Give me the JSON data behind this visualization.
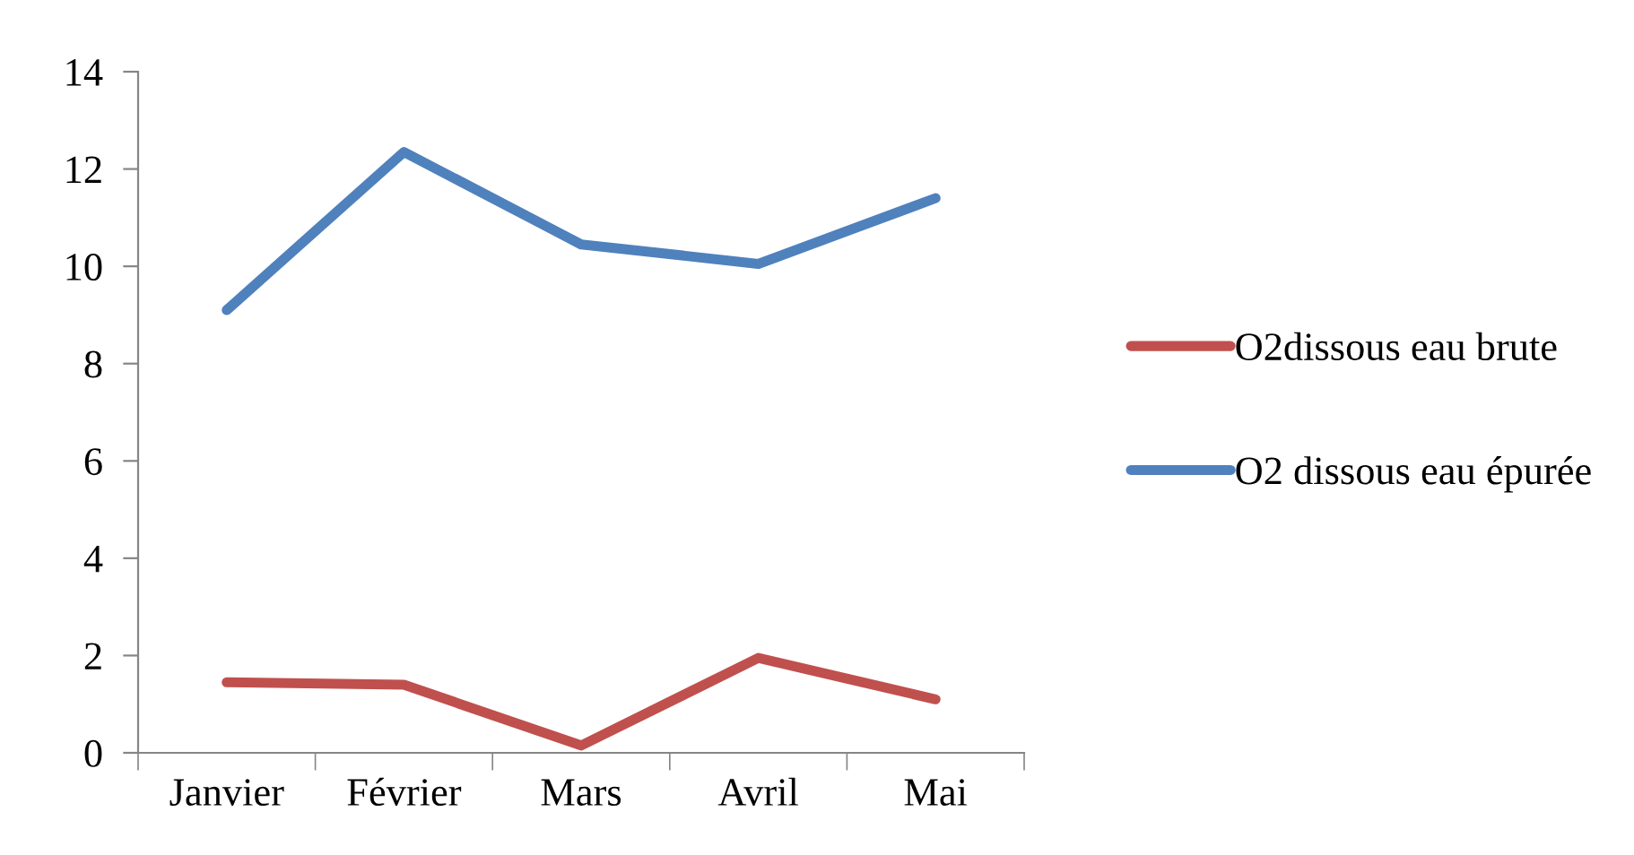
{
  "chart_data": {
    "type": "line",
    "categories": [
      "Janvier",
      "Février",
      "Mars",
      "Avril",
      "Mai"
    ],
    "series": [
      {
        "name": "O2dissous eau brute",
        "color": "#c0504d",
        "values": [
          1.45,
          1.4,
          0.15,
          1.95,
          1.1
        ]
      },
      {
        "name": "O2 dissous eau épurée",
        "color": "#4f81bd",
        "values": [
          9.1,
          12.35,
          10.45,
          10.05,
          11.4
        ]
      }
    ],
    "ylim": [
      0,
      14
    ],
    "yticks": [
      0,
      2,
      4,
      6,
      8,
      10,
      12,
      14
    ],
    "grid": false,
    "legend": "right",
    "marker": "none",
    "line_style": "solid"
  }
}
